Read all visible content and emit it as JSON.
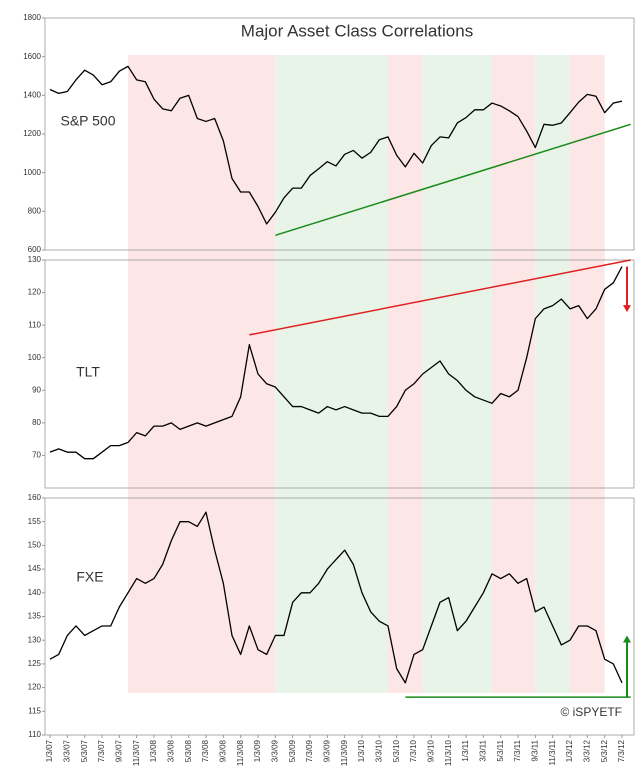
{
  "chart_data": [
    {
      "type": "line",
      "title": "Major Asset Class Correlations",
      "x": [
        "1/3/07",
        "2/3/07",
        "3/3/07",
        "4/3/07",
        "5/3/07",
        "6/3/07",
        "7/3/07",
        "8/3/07",
        "9/3/07",
        "10/3/07",
        "11/3/07",
        "12/3/07",
        "1/3/08",
        "2/3/08",
        "3/3/08",
        "4/3/08",
        "5/3/08",
        "6/3/08",
        "7/3/08",
        "8/3/08",
        "9/3/08",
        "10/3/08",
        "11/3/08",
        "12/3/08",
        "1/3/09",
        "2/3/09",
        "3/3/09",
        "4/3/09",
        "5/3/09",
        "6/3/09",
        "7/3/09",
        "8/3/09",
        "9/3/09",
        "10/3/09",
        "11/3/09",
        "12/3/09",
        "1/3/10",
        "2/3/10",
        "3/3/10",
        "4/3/10",
        "5/3/10",
        "6/3/10",
        "7/3/10",
        "8/3/10",
        "9/3/10",
        "10/3/10",
        "11/3/10",
        "12/3/10",
        "1/3/11",
        "2/3/11",
        "3/3/11",
        "4/3/11",
        "5/3/11",
        "6/3/11",
        "7/3/11",
        "8/3/11",
        "9/3/11",
        "10/3/11",
        "11/3/11",
        "12/3/11",
        "1/3/12",
        "2/3/12",
        "3/3/12",
        "4/3/12",
        "5/3/12",
        "6/3/12",
        "7/3/12"
      ],
      "series": [
        {
          "name": "S&P 500",
          "color": "#000000",
          "values": [
            1430,
            1410,
            1420,
            1480,
            1530,
            1505,
            1455,
            1470,
            1525,
            1550,
            1480,
            1470,
            1380,
            1330,
            1320,
            1385,
            1400,
            1280,
            1265,
            1280,
            1165,
            970,
            900,
            900,
            825,
            735,
            795,
            870,
            920,
            920,
            985,
            1020,
            1057,
            1035,
            1095,
            1115,
            1075,
            1105,
            1170,
            1185,
            1090,
            1030,
            1100,
            1050,
            1140,
            1185,
            1180,
            1257,
            1285,
            1325,
            1325,
            1360,
            1345,
            1320,
            1290,
            1215,
            1130,
            1250,
            1245,
            1257,
            1310,
            1365,
            1405,
            1395,
            1310,
            1360,
            1370
          ]
        }
      ],
      "ylim": [
        600,
        1800
      ],
      "yticks": [
        600,
        800,
        1000,
        1200,
        1400,
        1600,
        1800
      ],
      "trend_lines": [
        {
          "x": [
            "3/3/09",
            "8/3/12"
          ],
          "values": [
            676,
            1250
          ],
          "color": "#1a8a1a"
        }
      ],
      "shading": [
        {
          "start": "10/3/07",
          "end": "3/3/09",
          "color": "#fde6e6"
        },
        {
          "start": "3/3/09",
          "end": "4/3/10",
          "color": "#e8f4e8"
        },
        {
          "start": "4/3/10",
          "end": "8/3/10",
          "color": "#fde6e6"
        },
        {
          "start": "8/3/10",
          "end": "4/3/11",
          "color": "#e8f4e8"
        },
        {
          "start": "4/3/11",
          "end": "9/3/11",
          "color": "#fde6e6"
        },
        {
          "start": "9/3/11",
          "end": "1/3/12",
          "color": "#e8f4e8"
        },
        {
          "start": "1/3/12",
          "end": "5/3/12",
          "color": "#fde6e6"
        }
      ]
    },
    {
      "type": "line",
      "x": [
        "1/3/07",
        "2/3/07",
        "3/3/07",
        "4/3/07",
        "5/3/07",
        "6/3/07",
        "7/3/07",
        "8/3/07",
        "9/3/07",
        "10/3/07",
        "11/3/07",
        "12/3/07",
        "1/3/08",
        "2/3/08",
        "3/3/08",
        "4/3/08",
        "5/3/08",
        "6/3/08",
        "7/3/08",
        "8/3/08",
        "9/3/08",
        "10/3/08",
        "11/3/08",
        "12/3/08",
        "1/3/09",
        "2/3/09",
        "3/3/09",
        "4/3/09",
        "5/3/09",
        "6/3/09",
        "7/3/09",
        "8/3/09",
        "9/3/09",
        "10/3/09",
        "11/3/09",
        "12/3/09",
        "1/3/10",
        "2/3/10",
        "3/3/10",
        "4/3/10",
        "5/3/10",
        "6/3/10",
        "7/3/10",
        "8/3/10",
        "9/3/10",
        "10/3/10",
        "11/3/10",
        "12/3/10",
        "1/3/11",
        "2/3/11",
        "3/3/11",
        "4/3/11",
        "5/3/11",
        "6/3/11",
        "7/3/11",
        "8/3/11",
        "9/3/11",
        "10/3/11",
        "11/3/11",
        "12/3/11",
        "1/3/12",
        "2/3/12",
        "3/3/12",
        "4/3/12",
        "5/3/12",
        "6/3/12",
        "7/3/12"
      ],
      "series": [
        {
          "name": "TLT",
          "color": "#000000",
          "values": [
            71,
            72,
            71,
            71,
            69,
            69,
            71,
            73,
            73,
            74,
            77,
            76,
            79,
            79,
            80,
            78,
            79,
            80,
            79,
            80,
            81,
            82,
            88,
            104,
            95,
            92,
            91,
            88,
            85,
            85,
            84,
            83,
            85,
            84,
            85,
            84,
            83,
            83,
            82,
            82,
            85,
            90,
            92,
            95,
            97,
            99,
            95,
            93,
            90,
            88,
            87,
            86,
            89,
            88,
            90,
            100,
            112,
            115,
            116,
            118,
            115,
            116,
            112,
            115,
            121,
            123,
            128
          ]
        }
      ],
      "ylim": [
        60,
        130
      ],
      "yticks": [
        70,
        80,
        90,
        100,
        110,
        120,
        130
      ],
      "trend_lines": [
        {
          "x": [
            "12/3/08",
            "8/3/12"
          ],
          "values": [
            107,
            130
          ],
          "color": "#e02020"
        }
      ],
      "arrows": [
        {
          "x": "7/3/12",
          "values": [
            128,
            114
          ],
          "color": "#e02020"
        }
      ]
    },
    {
      "type": "line",
      "x": [
        "1/3/07",
        "2/3/07",
        "3/3/07",
        "4/3/07",
        "5/3/07",
        "6/3/07",
        "7/3/07",
        "8/3/07",
        "9/3/07",
        "10/3/07",
        "11/3/07",
        "12/3/07",
        "1/3/08",
        "2/3/08",
        "3/3/08",
        "4/3/08",
        "5/3/08",
        "6/3/08",
        "7/3/08",
        "8/3/08",
        "9/3/08",
        "10/3/08",
        "11/3/08",
        "12/3/08",
        "1/3/09",
        "2/3/09",
        "3/3/09",
        "4/3/09",
        "5/3/09",
        "6/3/09",
        "7/3/09",
        "8/3/09",
        "9/3/09",
        "10/3/09",
        "11/3/09",
        "12/3/09",
        "1/3/10",
        "2/3/10",
        "3/3/10",
        "4/3/10",
        "5/3/10",
        "6/3/10",
        "7/3/10",
        "8/3/10",
        "9/3/10",
        "10/3/10",
        "11/3/10",
        "12/3/10",
        "1/3/11",
        "2/3/11",
        "3/3/11",
        "4/3/11",
        "5/3/11",
        "6/3/11",
        "7/3/11",
        "8/3/11",
        "9/3/11",
        "10/3/11",
        "11/3/11",
        "12/3/11",
        "1/3/12",
        "2/3/12",
        "3/3/12",
        "4/3/12",
        "5/3/12",
        "6/3/12",
        "7/3/12"
      ],
      "series": [
        {
          "name": "FXE",
          "color": "#000000",
          "values": [
            126,
            127,
            131,
            133,
            131,
            132,
            133,
            133,
            137,
            140,
            143,
            142,
            143,
            146,
            151,
            155,
            155,
            154,
            157,
            149,
            142,
            131,
            127,
            133,
            128,
            127,
            131,
            131,
            138,
            140,
            140,
            142,
            145,
            147,
            149,
            146,
            140,
            136,
            134,
            133,
            124,
            121,
            127,
            128,
            133,
            138,
            139,
            132,
            134,
            137,
            140,
            144,
            143,
            144,
            142,
            143,
            136,
            137,
            133,
            129,
            130,
            133,
            133,
            132,
            126,
            125,
            121
          ]
        }
      ],
      "ylim": [
        110,
        160
      ],
      "yticks": [
        110,
        115,
        120,
        125,
        130,
        135,
        140,
        145,
        150,
        155,
        160
      ],
      "xticks": [
        "1/3/07",
        "3/3/07",
        "5/3/07",
        "7/3/07",
        "9/3/07",
        "11/3/07",
        "1/3/08",
        "3/3/08",
        "5/3/08",
        "7/3/08",
        "9/3/08",
        "11/3/08",
        "1/3/09",
        "3/3/09",
        "5/3/09",
        "7/3/09",
        "9/3/09",
        "11/3/09",
        "1/3/10",
        "3/3/10",
        "5/3/10",
        "7/3/10",
        "9/3/10",
        "11/3/10",
        "1/3/11",
        "3/3/11",
        "5/3/11",
        "7/3/11",
        "9/3/11",
        "11/3/11",
        "1/3/12",
        "3/3/12",
        "5/3/12",
        "7/3/12"
      ],
      "trend_lines": [
        {
          "x": [
            "6/3/10",
            "8/3/12"
          ],
          "values": [
            118,
            118
          ],
          "color": "#1a8a1a"
        }
      ],
      "arrows": [
        {
          "x": "7/3/12",
          "values": [
            118,
            131
          ],
          "color": "#1a8a1a"
        }
      ],
      "annotation": "© iSPYETF"
    }
  ]
}
